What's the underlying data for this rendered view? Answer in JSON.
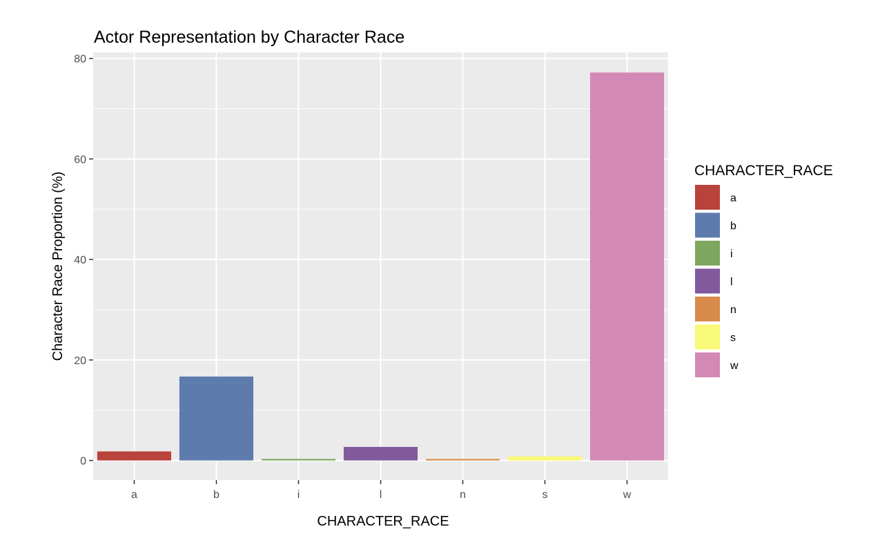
{
  "chart_data": {
    "type": "bar",
    "title": "Actor Representation by Character Race",
    "xlabel": "CHARACTER_RACE",
    "ylabel": "Character Race Proportion (%)",
    "categories": [
      "a",
      "b",
      "i",
      "l",
      "n",
      "s",
      "w"
    ],
    "values": [
      1.8,
      16.7,
      0.3,
      2.7,
      0.3,
      0.8,
      77.2
    ],
    "colors": [
      "#b9433b",
      "#5d7bad",
      "#7da65f",
      "#81599c",
      "#d88b4b",
      "#f9f978",
      "#d389b5"
    ],
    "ylim": [
      -3.9,
      81.2
    ],
    "yticks": [
      0,
      20,
      40,
      60,
      80
    ],
    "grid": true,
    "panel_background": "#ebebeb",
    "legend": {
      "title": "CHARACTER_RACE",
      "position": "right",
      "entries": [
        "a",
        "b",
        "i",
        "l",
        "n",
        "s",
        "w"
      ]
    }
  }
}
